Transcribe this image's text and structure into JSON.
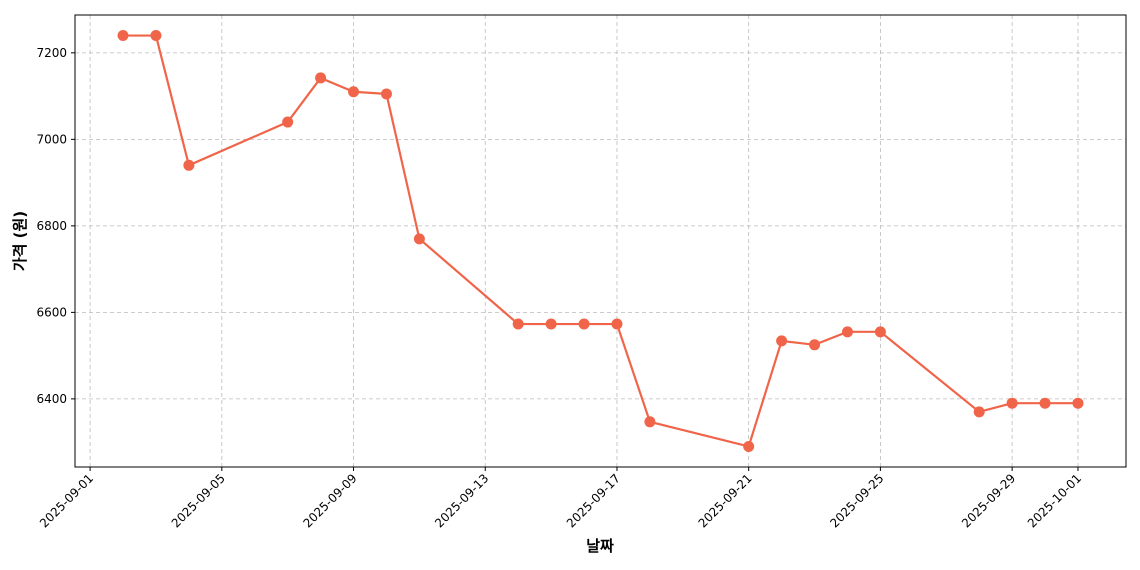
{
  "chart_data": {
    "type": "line",
    "xlabel": "날짜",
    "ylabel": "가격 (원)",
    "x": [
      "2025-09-02",
      "2025-09-03",
      "2025-09-04",
      "2025-09-07",
      "2025-09-08",
      "2025-09-09",
      "2025-09-10",
      "2025-09-11",
      "2025-09-14",
      "2025-09-15",
      "2025-09-16",
      "2025-09-17",
      "2025-09-18",
      "2025-09-21",
      "2025-09-22",
      "2025-09-23",
      "2025-09-24",
      "2025-09-25",
      "2025-09-28",
      "2025-09-29",
      "2025-09-30",
      "2025-10-01"
    ],
    "series": [
      {
        "color": "#f0654a",
        "values": [
          7240,
          7240,
          6940,
          7040,
          7142,
          7110,
          7105,
          6770,
          6573,
          6573,
          6573,
          6573,
          6347,
          6290,
          6534,
          6525,
          6555,
          6555,
          6370,
          6390,
          6390,
          6390
        ]
      }
    ],
    "xlim": [
      "2025-08-31T13:00",
      "2025-10-02T11:00"
    ],
    "xticks": [
      "2025-09-01",
      "2025-09-05",
      "2025-09-09",
      "2025-09-13",
      "2025-09-17",
      "2025-09-21",
      "2025-09-25",
      "2025-09-29",
      "2025-10-01"
    ],
    "ylim": [
      6242.5,
      7287.5
    ],
    "yticks": [
      6400,
      6600,
      6800,
      7000,
      7200
    ],
    "grid": true
  }
}
